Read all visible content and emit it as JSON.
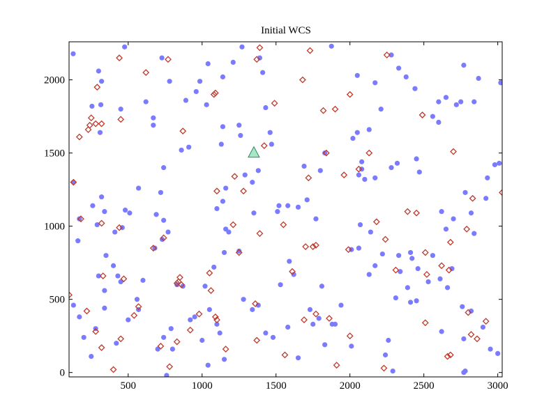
{
  "chart_data": {
    "type": "scatter",
    "title": "Initial WCS",
    "xlim": [
      100,
      3030
    ],
    "ylim": [
      -30,
      2260
    ],
    "xticks": [
      500,
      1000,
      1500,
      2000,
      2500,
      3000
    ],
    "yticks": [
      0,
      500,
      1000,
      1500,
      2000
    ],
    "grid": false,
    "series": [
      {
        "marker": "circle",
        "color": "#7b7bff",
        "points": [
          [
            128,
            2178
          ],
          [
            476,
            2225
          ],
          [
            728,
            2150
          ],
          [
            1270,
            2225
          ],
          [
            1875,
            2230
          ],
          [
            1040,
            2110
          ],
          [
            985,
            1990
          ],
          [
            1140,
            2020
          ],
          [
            1390,
            2150
          ],
          [
            1410,
            2050
          ],
          [
            1210,
            2120
          ],
          [
            780,
            1990
          ],
          [
            300,
            2060
          ],
          [
            320,
            1990
          ],
          [
            315,
            1830
          ],
          [
            255,
            1820
          ],
          [
            310,
            1640
          ],
          [
            450,
            1800
          ],
          [
            620,
            1850
          ],
          [
            670,
            1740
          ],
          [
            670,
            1690
          ],
          [
            890,
            1860
          ],
          [
            960,
            1920
          ],
          [
            1030,
            1830
          ],
          [
            1140,
            1680
          ],
          [
            1130,
            1560
          ],
          [
            860,
            1520
          ],
          [
            910,
            1540
          ],
          [
            740,
            1400
          ],
          [
            1250,
            1690
          ],
          [
            1260,
            1620
          ],
          [
            1430,
            1810
          ],
          [
            1460,
            1640
          ],
          [
            1470,
            1560
          ],
          [
            1380,
            1380
          ],
          [
            1160,
            1260
          ],
          [
            1100,
            1120
          ],
          [
            1140,
            1170
          ],
          [
            1160,
            980
          ],
          [
            1180,
            960
          ],
          [
            1250,
            830
          ],
          [
            1350,
            1090
          ],
          [
            1510,
            1100
          ],
          [
            1520,
            1140
          ],
          [
            1580,
            1140
          ],
          [
            1650,
            1130
          ],
          [
            1690,
            1410
          ],
          [
            1710,
            1180
          ],
          [
            1770,
            1050
          ],
          [
            1800,
            1380
          ],
          [
            1830,
            1500
          ],
          [
            2050,
            2030
          ],
          [
            2080,
            1390
          ],
          [
            2050,
            1640
          ],
          [
            2020,
            1600
          ],
          [
            2170,
            1980
          ],
          [
            2210,
            1800
          ],
          [
            2280,
            2170
          ],
          [
            2330,
            2080
          ],
          [
            2380,
            2020
          ],
          [
            2440,
            1940
          ],
          [
            2560,
            1750
          ],
          [
            2600,
            1710
          ],
          [
            2600,
            1850
          ],
          [
            2650,
            1880
          ],
          [
            2720,
            1830
          ],
          [
            2750,
            1850
          ],
          [
            2770,
            2100
          ],
          [
            2870,
            2010
          ],
          [
            2840,
            1850
          ],
          [
            2280,
            1400
          ],
          [
            2320,
            1430
          ],
          [
            2450,
            1460
          ],
          [
            2470,
            1370
          ],
          [
            2100,
            1320
          ],
          [
            2170,
            1330
          ],
          [
            2080,
            1440
          ],
          [
            2060,
            1350
          ],
          [
            2130,
            1660
          ],
          [
            2620,
            1100
          ],
          [
            2650,
            980
          ],
          [
            2700,
            1050
          ],
          [
            2780,
            1230
          ],
          [
            2820,
            1090
          ],
          [
            2840,
            950
          ],
          [
            2920,
            1190
          ],
          [
            2930,
            1330
          ],
          [
            2980,
            1420
          ],
          [
            3020,
            1980
          ],
          [
            3010,
            1430
          ],
          [
            130,
            1300
          ],
          [
            170,
            1050
          ],
          [
            160,
            900
          ],
          [
            260,
            1140
          ],
          [
            320,
            1200
          ],
          [
            340,
            1100
          ],
          [
            290,
            1010
          ],
          [
            350,
            800
          ],
          [
            410,
            960
          ],
          [
            460,
            990
          ],
          [
            480,
            1110
          ],
          [
            510,
            1090
          ],
          [
            570,
            1260
          ],
          [
            690,
            1080
          ],
          [
            720,
            1230
          ],
          [
            740,
            1040
          ],
          [
            770,
            960
          ],
          [
            680,
            850
          ],
          [
            730,
            910
          ],
          [
            600,
            630
          ],
          [
            450,
            620
          ],
          [
            400,
            730
          ],
          [
            430,
            660
          ],
          [
            340,
            560
          ],
          [
            300,
            660
          ],
          [
            340,
            440
          ],
          [
            170,
            380
          ],
          [
            200,
            240
          ],
          [
            250,
            110
          ],
          [
            280,
            300
          ],
          [
            500,
            360
          ],
          [
            570,
            430
          ],
          [
            560,
            500
          ],
          [
            420,
            200
          ],
          [
            700,
            160
          ],
          [
            740,
            240
          ],
          [
            760,
            -20
          ],
          [
            790,
            300
          ],
          [
            800,
            160
          ],
          [
            830,
            600
          ],
          [
            870,
            590
          ],
          [
            950,
            380
          ],
          [
            920,
            360
          ],
          [
            1020,
            590
          ],
          [
            1050,
            430
          ],
          [
            1040,
            50
          ],
          [
            1000,
            220
          ],
          [
            1080,
            720
          ],
          [
            1150,
            820
          ],
          [
            1100,
            330
          ],
          [
            1120,
            270
          ],
          [
            1150,
            90
          ],
          [
            1280,
            500
          ],
          [
            1340,
            430
          ],
          [
            1380,
            460
          ],
          [
            1430,
            270
          ],
          [
            1480,
            240
          ],
          [
            1530,
            600
          ],
          [
            1580,
            310
          ],
          [
            1620,
            670
          ],
          [
            1590,
            760
          ],
          [
            1650,
            100
          ],
          [
            1730,
            430
          ],
          [
            1750,
            330
          ],
          [
            1790,
            370
          ],
          [
            1810,
            590
          ],
          [
            1830,
            190
          ],
          [
            1880,
            330
          ],
          [
            1900,
            330
          ],
          [
            1940,
            460
          ],
          [
            2010,
            180
          ],
          [
            2010,
            840
          ],
          [
            2060,
            850
          ],
          [
            2070,
            1010
          ],
          [
            2140,
            960
          ],
          [
            2130,
            670
          ],
          [
            2220,
            810
          ],
          [
            2170,
            730
          ],
          [
            2240,
            120
          ],
          [
            2260,
            220
          ],
          [
            2290,
            10
          ],
          [
            2310,
            510
          ],
          [
            2340,
            690
          ],
          [
            2330,
            800
          ],
          [
            2390,
            580
          ],
          [
            2410,
            480
          ],
          [
            2410,
            820
          ],
          [
            2420,
            780
          ],
          [
            2450,
            490
          ],
          [
            2460,
            710
          ],
          [
            2530,
            620
          ],
          [
            2560,
            800
          ],
          [
            2610,
            640
          ],
          [
            2620,
            280
          ],
          [
            2660,
            580
          ],
          [
            2690,
            710
          ],
          [
            2760,
            450
          ],
          [
            2770,
            230
          ],
          [
            2770,
            0
          ],
          [
            2780,
            10
          ],
          [
            2820,
            420
          ],
          [
            2900,
            310
          ],
          [
            2950,
            160
          ],
          [
            3000,
            130
          ],
          [
            1340,
            1300
          ],
          [
            1290,
            1350
          ],
          [
            130,
            460
          ]
        ]
      },
      {
        "marker": "diamond",
        "color": "#c0392b",
        "points": [
          [
            440,
            2150
          ],
          [
            770,
            2140
          ],
          [
            1680,
            2000
          ],
          [
            1730,
            2200
          ],
          [
            1390,
            2220
          ],
          [
            1370,
            2140
          ],
          [
            2250,
            2170
          ],
          [
            290,
            1950
          ],
          [
            620,
            2050
          ],
          [
            1090,
            1910
          ],
          [
            1080,
            1900
          ],
          [
            1490,
            1840
          ],
          [
            1820,
            1790
          ],
          [
            1900,
            1800
          ],
          [
            2000,
            1900
          ],
          [
            2490,
            1760
          ],
          [
            170,
            1610
          ],
          [
            230,
            1660
          ],
          [
            250,
            1740
          ],
          [
            240,
            1690
          ],
          [
            280,
            1700
          ],
          [
            320,
            1700
          ],
          [
            450,
            1730
          ],
          [
            870,
            1650
          ],
          [
            1420,
            1550
          ],
          [
            1840,
            1500
          ],
          [
            2130,
            1500
          ],
          [
            2700,
            1510
          ],
          [
            1720,
            1330
          ],
          [
            1220,
            1340
          ],
          [
            1960,
            1350
          ],
          [
            2060,
            1390
          ],
          [
            2390,
            1100
          ],
          [
            2450,
            1090
          ],
          [
            2830,
            1190
          ],
          [
            3030,
            1230
          ],
          [
            130,
            1300
          ],
          [
            1280,
            1240
          ],
          [
            1100,
            1240
          ],
          [
            180,
            1050
          ],
          [
            320,
            1020
          ],
          [
            440,
            990
          ],
          [
            740,
            920
          ],
          [
            670,
            850
          ],
          [
            1210,
            1010
          ],
          [
            1390,
            950
          ],
          [
            1550,
            1010
          ],
          [
            1770,
            870
          ],
          [
            1750,
            860
          ],
          [
            1990,
            840
          ],
          [
            2180,
            1030
          ],
          [
            2240,
            910
          ],
          [
            2510,
            820
          ],
          [
            2680,
            890
          ],
          [
            2790,
            980
          ],
          [
            280,
            280
          ],
          [
            330,
            660
          ],
          [
            320,
            170
          ],
          [
            470,
            640
          ],
          [
            450,
            230
          ],
          [
            540,
            390
          ],
          [
            570,
            450
          ],
          [
            720,
            180
          ],
          [
            780,
            40
          ],
          [
            830,
            610
          ],
          [
            840,
            620
          ],
          [
            850,
            650
          ],
          [
            860,
            600
          ],
          [
            830,
            210
          ],
          [
            920,
            290
          ],
          [
            980,
            400
          ],
          [
            1050,
            680
          ],
          [
            1060,
            560
          ],
          [
            1090,
            380
          ],
          [
            1100,
            360
          ],
          [
            1160,
            160
          ],
          [
            1360,
            470
          ],
          [
            1370,
            220
          ],
          [
            1560,
            120
          ],
          [
            1610,
            690
          ],
          [
            1690,
            360
          ],
          [
            1770,
            400
          ],
          [
            1860,
            370
          ],
          [
            1910,
            50
          ],
          [
            2000,
            250
          ],
          [
            2230,
            30
          ],
          [
            2310,
            700
          ],
          [
            2520,
            670
          ],
          [
            2510,
            340
          ],
          [
            2620,
            730
          ],
          [
            2670,
            700
          ],
          [
            2660,
            110
          ],
          [
            2680,
            120
          ],
          [
            2800,
            410
          ],
          [
            2820,
            260
          ],
          [
            2860,
            230
          ],
          [
            2920,
            350
          ],
          [
            400,
            20
          ],
          [
            220,
            420
          ],
          [
            100,
            530
          ],
          [
            1250,
            820
          ],
          [
            1700,
            860
          ]
        ]
      },
      {
        "marker": "triangle",
        "color": "#2e8b57",
        "points": [
          [
            1350,
            1500
          ]
        ]
      }
    ]
  }
}
